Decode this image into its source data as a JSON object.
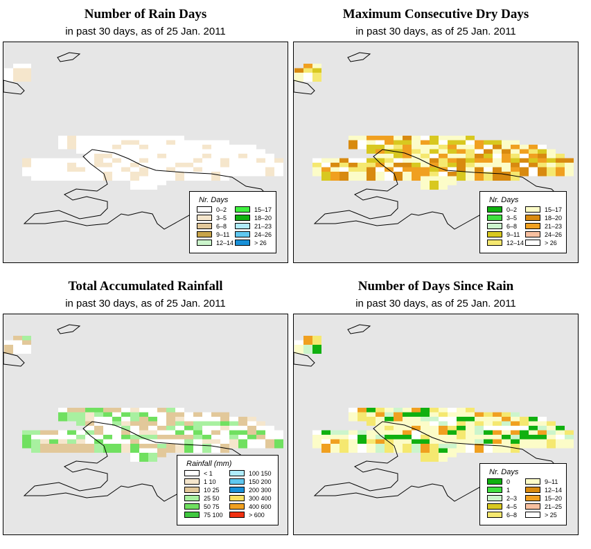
{
  "panels": [
    {
      "key": "rain_days",
      "title": "Number of Rain Days",
      "subtitle": "in past 30 days, as of  25 Jan. 2011",
      "legend_title": "Nr. Days",
      "legend": [
        {
          "label": "0–2",
          "color": "#ffffff"
        },
        {
          "label": "3–5",
          "color": "#f5e6cc"
        },
        {
          "label": "6–8",
          "color": "#e2c89a"
        },
        {
          "label": "9–11",
          "color": "#c8a44a"
        },
        {
          "label": "12–14",
          "color": "#ccf5cc"
        },
        {
          "label": "15–17",
          "color": "#40f040"
        },
        {
          "label": "18–20",
          "color": "#10b010"
        },
        {
          "label": "21–23",
          "color": "#b0ecfb"
        },
        {
          "label": "24–26",
          "color": "#60c8f0"
        },
        {
          "label": "> 26",
          "color": "#1890d8"
        }
      ]
    },
    {
      "key": "dry_days",
      "title": "Maximum Consecutive Dry Days",
      "subtitle": "in past 30 days, as of  25 Jan. 2011",
      "legend_title": "Nr. Days",
      "legend": [
        {
          "label": "0–2",
          "color": "#10b010"
        },
        {
          "label": "3–5",
          "color": "#40e040"
        },
        {
          "label": "6–8",
          "color": "#ccf5cc"
        },
        {
          "label": "9–11",
          "color": "#d8c820"
        },
        {
          "label": "12–14",
          "color": "#f5e870"
        },
        {
          "label": "15–17",
          "color": "#fcfcc8"
        },
        {
          "label": "18–20",
          "color": "#d88a10"
        },
        {
          "label": "21–23",
          "color": "#f0a020"
        },
        {
          "label": "24–26",
          "color": "#f8c0a0"
        },
        {
          "label": "> 26",
          "color": "#ffffff"
        }
      ]
    },
    {
      "key": "rainfall",
      "title": "Total Accumulated Rainfall",
      "subtitle": "in past 30 days, as of  25 Jan. 2011",
      "legend_title": "Rainfall (mm)",
      "legend": [
        {
          "label": "< 1",
          "color": "#ffffff"
        },
        {
          "label": "1   10",
          "color": "#f5e6cc"
        },
        {
          "label": "10   25",
          "color": "#e2c89a"
        },
        {
          "label": "25   50",
          "color": "#a8f0a0"
        },
        {
          "label": "50   75",
          "color": "#70e060"
        },
        {
          "label": "75   100",
          "color": "#40c840"
        },
        {
          "label": "100   150",
          "color": "#b0ecfb"
        },
        {
          "label": "150   200",
          "color": "#60c8f0"
        },
        {
          "label": "200   300",
          "color": "#1890d8"
        },
        {
          "label": "300   400",
          "color": "#f8e060"
        },
        {
          "label": "400   600",
          "color": "#f0a020"
        },
        {
          "label": "> 600",
          "color": "#f03010"
        }
      ]
    },
    {
      "key": "since_rain",
      "title": "Number of Days Since Rain",
      "subtitle": "in past 30 days, as of  25 Jan. 2011",
      "legend_title": "Nr. Days",
      "legend": [
        {
          "label": "0",
          "color": "#10b010"
        },
        {
          "label": "1",
          "color": "#40e040"
        },
        {
          "label": "2–3",
          "color": "#ccf5cc"
        },
        {
          "label": "4–5",
          "color": "#d8c820"
        },
        {
          "label": "6–8",
          "color": "#f5e870"
        },
        {
          "label": "9–11",
          "color": "#fcfcc8"
        },
        {
          "label": "12–14",
          "color": "#d88a10"
        },
        {
          "label": "15–20",
          "color": "#f0a020"
        },
        {
          "label": "21–25",
          "color": "#f8c0a0"
        },
        {
          "label": "> 25",
          "color": "#ffffff"
        }
      ]
    }
  ]
}
